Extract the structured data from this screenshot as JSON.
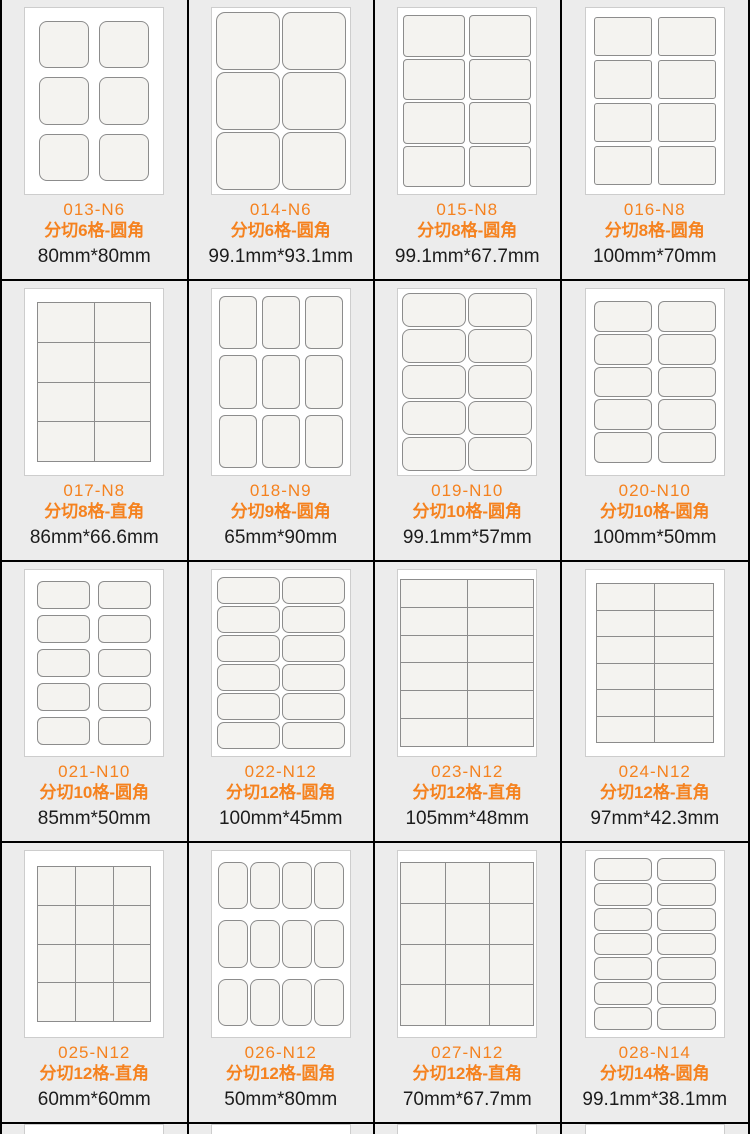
{
  "page": {
    "background": "#ececec",
    "accent_orange": "#f5821f",
    "text_dark": "#1c1c1c",
    "grid_line_black": "#000000",
    "label_fill": "#f4f3f0",
    "label_border": "#8c8c8c",
    "sheet_white": "#ffffff"
  },
  "products": [
    {
      "code": "013-N6",
      "desc": "分切6格-圆角",
      "size": "80mm*80mm",
      "grid": {
        "cols": 2,
        "rows": 3,
        "style": "cut",
        "radius": 8,
        "padX": 14,
        "padY": 13,
        "gapX": 10,
        "gapY": 9
      }
    },
    {
      "code": "014-N6",
      "desc": "分切6格-圆角",
      "size": "99.1mm*93.1mm",
      "grid": {
        "cols": 2,
        "rows": 3,
        "style": "cut",
        "radius": 9,
        "padX": 4,
        "padY": 4,
        "gapX": 2,
        "gapY": 2
      }
    },
    {
      "code": "015-N8",
      "desc": "分切8格-圆角",
      "size": "99.1mm*67.7mm",
      "grid": {
        "cols": 2,
        "rows": 4,
        "style": "cut",
        "radius": 4,
        "padX": 5,
        "padY": 7,
        "gapX": 4,
        "gapY": 2
      }
    },
    {
      "code": "016-N8",
      "desc": "分切8格-圆角",
      "size": "100mm*70mm",
      "grid": {
        "cols": 2,
        "rows": 4,
        "style": "cut",
        "radius": 3,
        "padX": 8,
        "padY": 9,
        "gapX": 6,
        "gapY": 4
      }
    },
    {
      "code": "017-N8",
      "desc": "分切8格-直角",
      "size": "86mm*66.6mm",
      "grid": {
        "cols": 2,
        "rows": 4,
        "style": "merged",
        "radius": 0,
        "padX": 12,
        "padY": 13,
        "gapX": 0,
        "gapY": 0
      }
    },
    {
      "code": "018-N9",
      "desc": "分切9格-圆角",
      "size": "65mm*90mm",
      "grid": {
        "cols": 3,
        "rows": 3,
        "style": "cut",
        "radius": 6,
        "padX": 7,
        "padY": 7,
        "gapX": 5,
        "gapY": 6
      }
    },
    {
      "code": "019-N10",
      "desc": "分切10格-圆角",
      "size": "99.1mm*57mm",
      "grid": {
        "cols": 2,
        "rows": 5,
        "style": "cut",
        "radius": 8,
        "padX": 4,
        "padY": 4,
        "gapX": 2,
        "gapY": 2
      }
    },
    {
      "code": "020-N10",
      "desc": "分切10格-圆角",
      "size": "100mm*50mm",
      "grid": {
        "cols": 2,
        "rows": 5,
        "style": "cut",
        "radius": 6,
        "padX": 8,
        "padY": 12,
        "gapX": 6,
        "gapY": 2
      }
    },
    {
      "code": "021-N10",
      "desc": "分切10格-圆角",
      "size": "85mm*50mm",
      "grid": {
        "cols": 2,
        "rows": 5,
        "style": "cut",
        "radius": 6,
        "padX": 12,
        "padY": 11,
        "gapX": 8,
        "gapY": 6
      }
    },
    {
      "code": "022-N12",
      "desc": "分切12格-圆角",
      "size": "100mm*45mm",
      "grid": {
        "cols": 2,
        "rows": 6,
        "style": "cut",
        "radius": 7,
        "padX": 5,
        "padY": 7,
        "gapX": 2,
        "gapY": 2
      }
    },
    {
      "code": "023-N12",
      "desc": "分切12格-直角",
      "size": "105mm*48mm",
      "grid": {
        "cols": 2,
        "rows": 6,
        "style": "merged",
        "radius": 0,
        "padX": 2,
        "padY": 9,
        "gapX": 0,
        "gapY": 0
      }
    },
    {
      "code": "024-N12",
      "desc": "分切12格-直角",
      "size": "97mm*42.3mm",
      "grid": {
        "cols": 2,
        "rows": 6,
        "style": "merged",
        "radius": 0,
        "padX": 10,
        "padY": 13,
        "gapX": 0,
        "gapY": 0
      }
    },
    {
      "code": "025-N12",
      "desc": "分切12格-直角",
      "size": "60mm*60mm",
      "grid": {
        "cols": 3,
        "rows": 4,
        "style": "merged",
        "radius": 0,
        "padX": 12,
        "padY": 15,
        "gapX": 0,
        "gapY": 0
      }
    },
    {
      "code": "026-N12",
      "desc": "分切12格-圆角",
      "size": "50mm*80mm",
      "grid": {
        "cols": 4,
        "rows": 3,
        "style": "cut",
        "radius": 8,
        "padX": 6,
        "padY": 11,
        "gapX": 2,
        "gapY": 11
      }
    },
    {
      "code": "027-N12",
      "desc": "分切12格-直角",
      "size": "70mm*67.7mm",
      "grid": {
        "cols": 3,
        "rows": 4,
        "style": "merged",
        "radius": 0,
        "padX": 2,
        "padY": 11,
        "gapX": 0,
        "gapY": 0
      }
    },
    {
      "code": "028-N14",
      "desc": "分切14格-圆角",
      "size": "99.1mm*38.1mm",
      "grid": {
        "cols": 2,
        "rows": 7,
        "style": "cut",
        "radius": 6,
        "padX": 8,
        "padY": 7,
        "gapX": 5,
        "gapY": 2
      }
    }
  ]
}
